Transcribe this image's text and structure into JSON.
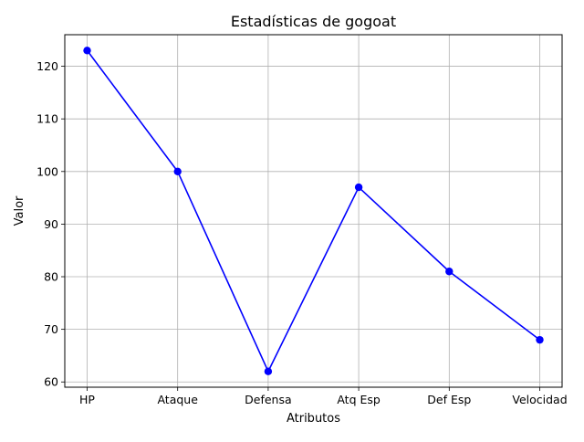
{
  "chart_data": {
    "type": "line",
    "title": "Estadísticas de gogoat",
    "xlabel": "Atributos",
    "ylabel": "Valor",
    "categories": [
      "HP",
      "Ataque",
      "Defensa",
      "Atq Esp",
      "Def Esp",
      "Velocidad"
    ],
    "series": [
      {
        "values": [
          123,
          100,
          62,
          97,
          81,
          68
        ],
        "color": "#0000ff",
        "marker": "circle"
      }
    ],
    "ylim": [
      59.0,
      126.0
    ],
    "yticks": [
      60,
      70,
      80,
      90,
      100,
      110,
      120
    ],
    "grid": true,
    "legend": "none"
  }
}
